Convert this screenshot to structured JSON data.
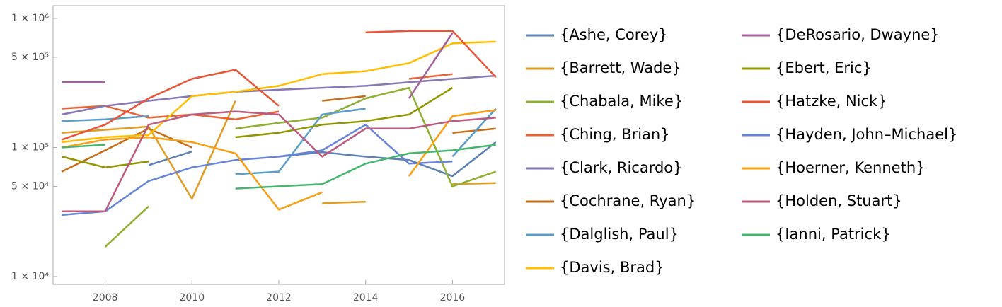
{
  "chart_data": {
    "type": "line",
    "log_y": true,
    "x": [
      2007,
      2008,
      2009,
      2010,
      2011,
      2012,
      2013,
      2014,
      2015,
      2016,
      2017
    ],
    "xlim": [
      2006.8,
      2017.2
    ],
    "xticks": [
      2008,
      2010,
      2012,
      2014,
      2016
    ],
    "ylim": [
      8700,
      1255000
    ],
    "yticks": [
      {
        "value": 10000,
        "label": "1 × 10⁴"
      },
      {
        "value": 50000,
        "label": "5 × 10⁴"
      },
      {
        "value": 100000,
        "label": "1 × 10⁵"
      },
      {
        "value": 500000,
        "label": "5 × 10⁵"
      },
      {
        "value": 1000000,
        "label": "1 × 10⁶"
      }
    ],
    "grid": false,
    "legend": "right",
    "series": [
      {
        "name": "{Ashe, Corey}",
        "color": "#5e81b5",
        "values": [
          null,
          null,
          73000,
          93000,
          null,
          85000,
          92000,
          85000,
          80000,
          60000,
          110000
        ]
      },
      {
        "name": "{Barrett, Wade}",
        "color": "#e19c24",
        "values": [
          130000,
          137000,
          145000,
          40000,
          230000,
          null,
          37000,
          38000,
          null,
          52000,
          53000
        ]
      },
      {
        "name": "{Chabala, Mike}",
        "color": "#8fb032",
        "values": [
          null,
          17000,
          35000,
          null,
          140000,
          155000,
          170000,
          240000,
          290000,
          50000,
          65000
        ]
      },
      {
        "name": "{Ching, Brian}",
        "color": "#eb6235",
        "values": [
          200000,
          210000,
          170000,
          180000,
          165000,
          190000,
          null,
          null,
          340000,
          370000,
          null
        ]
      },
      {
        "name": "{Clark, Ricardo}",
        "color": "#8778b3",
        "values": [
          180000,
          210000,
          230000,
          250000,
          270000,
          280000,
          290000,
          300000,
          320000,
          340000,
          360000
        ]
      },
      {
        "name": "{Cochrane, Ryan}",
        "color": "#c56e1a",
        "values": [
          65000,
          95000,
          140000,
          100000,
          null,
          null,
          230000,
          250000,
          null,
          130000,
          140000
        ]
      },
      {
        "name": "{Dalglish, Paul}",
        "color": "#5d9ec7",
        "values": [
          160000,
          165000,
          175000,
          null,
          62000,
          65000,
          180000,
          200000,
          null,
          85000,
          200000
        ]
      },
      {
        "name": "{Davis, Brad}",
        "color": "#ffbf00",
        "values": [
          110000,
          120000,
          125000,
          250000,
          270000,
          300000,
          370000,
          390000,
          450000,
          640000,
          660000
        ]
      },
      {
        "name": "{DeRosario, Dwayne}",
        "color": "#a5609d",
        "values": [
          320000,
          320000,
          null,
          null,
          null,
          null,
          null,
          null,
          240000,
          770000,
          null
        ]
      },
      {
        "name": "{Ebert, Eric}",
        "color": "#929600",
        "values": [
          85000,
          70000,
          78000,
          null,
          120000,
          130000,
          150000,
          160000,
          180000,
          290000,
          null
        ]
      },
      {
        "name": "{Hatzke, Nick}",
        "color": "#e95536",
        "values": [
          115000,
          150000,
          240000,
          340000,
          400000,
          210000,
          null,
          780000,
          800000,
          800000,
          350000
        ]
      },
      {
        "name": "{Hayden, John–Michael}",
        "color": "#6685d9",
        "values": [
          30000,
          32000,
          55000,
          70000,
          80000,
          85000,
          95000,
          150000,
          75000,
          78000,
          null
        ]
      },
      {
        "name": "{Hoerner, Kenneth}",
        "color": "#f89f13",
        "values": [
          100000,
          115000,
          120000,
          110000,
          90000,
          33000,
          45000,
          null,
          60000,
          175000,
          195000
        ]
      },
      {
        "name": "{Holden, Stuart}",
        "color": "#bc5b80",
        "values": [
          32000,
          32000,
          150000,
          180000,
          190000,
          180000,
          85000,
          140000,
          140000,
          160000,
          170000
        ]
      },
      {
        "name": "{Ianni, Patrick}",
        "color": "#47b66d",
        "values": [
          100000,
          105000,
          null,
          null,
          48000,
          50000,
          52000,
          75000,
          90000,
          95000,
          105000
        ]
      }
    ]
  }
}
